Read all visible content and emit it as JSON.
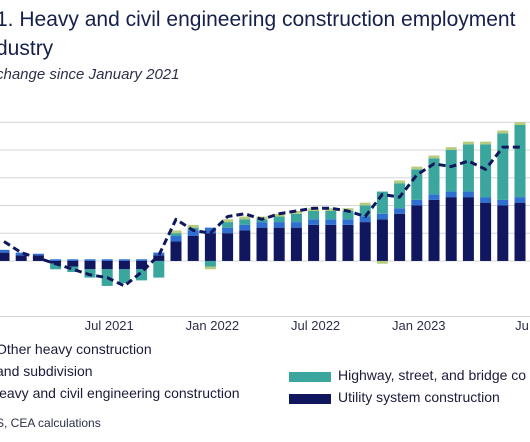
{
  "title_line1": "1. Heavy and civil engineering construction employment",
  "title_line2": "dustry",
  "subtitle": "change since January 2021",
  "source": "S, CEA calculations",
  "colors": {
    "other": "#b5cc7f",
    "land": "#2f6fd1",
    "highway": "#3aa69e",
    "utility": "#10175e",
    "total": "#10175e",
    "grid": "#d5d5d5"
  },
  "legend": {
    "other": "Other heavy construction",
    "land": "and subdivision",
    "total": "leavy and civil engineering construction",
    "highway": "Highway, street, and bridge co",
    "utility": "Utility system construction"
  },
  "chart_data": {
    "type": "bar",
    "stacked": true,
    "x_tick_labels": [
      "Jul 2021",
      "Jan 2022",
      "Jul 2022",
      "Jan 2023",
      "Ju"
    ],
    "categories": [
      "Jan 2021",
      "Feb 2021",
      "Mar 2021",
      "Apr 2021",
      "May 2021",
      "Jun 2021",
      "Jul 2021",
      "Aug 2021",
      "Sep 2021",
      "Oct 2021",
      "Nov 2021",
      "Dec 2021",
      "Jan 2022",
      "Feb 2022",
      "Mar 2022",
      "Apr 2022",
      "May 2022",
      "Jun 2022",
      "Jul 2022",
      "Aug 2022",
      "Sep 2022",
      "Oct 2022",
      "Nov 2022",
      "Dec 2022",
      "Jan 2023",
      "Feb 2023",
      "Mar 2023",
      "Apr 2023",
      "May 2023",
      "Jun 2023",
      "Jul 2023"
    ],
    "series": [
      {
        "name": "Utility system construction",
        "color_key": "utility",
        "values": [
          1.5,
          1.0,
          1.0,
          -0.5,
          -1.0,
          -1.5,
          -1.5,
          -1.5,
          -1.5,
          1.0,
          3.5,
          4.5,
          5.0,
          5.0,
          5.5,
          6.0,
          6.0,
          6.0,
          6.5,
          6.5,
          6.5,
          7.0,
          7.5,
          8.5,
          10.0,
          11.0,
          11.5,
          11.5,
          10.5,
          10.0,
          10.5
        ]
      },
      {
        "name": "Land subdivision",
        "color_key": "land",
        "values": [
          0.5,
          0.5,
          0.3,
          0.3,
          0.3,
          0.3,
          0.3,
          0.3,
          0.3,
          0.5,
          1.0,
          1.0,
          1.0,
          1.0,
          1.0,
          1.0,
          1.0,
          1.0,
          1.0,
          1.0,
          1.0,
          1.0,
          1.0,
          1.0,
          1.0,
          1.0,
          1.0,
          1.0,
          1.0,
          1.0,
          1.0
        ]
      },
      {
        "name": "Highway, street, and bridge construction",
        "color_key": "highway",
        "values": [
          0.0,
          0.0,
          0.0,
          -1.0,
          -1.0,
          -1.5,
          -3.0,
          -2.5,
          -2.0,
          -3.0,
          0.5,
          0.5,
          -1.0,
          1.0,
          1.0,
          0.5,
          1.0,
          1.5,
          1.5,
          1.5,
          1.5,
          2.0,
          4.0,
          4.5,
          5.5,
          6.5,
          7.5,
          8.5,
          9.5,
          12.0,
          13.0
        ]
      },
      {
        "name": "Other heavy construction",
        "color_key": "other",
        "values": [
          0.0,
          0.0,
          0.0,
          0.0,
          0.0,
          0.0,
          0.0,
          0.0,
          0.0,
          0.0,
          0.5,
          0.5,
          -0.5,
          0.5,
          0.5,
          0.5,
          0.5,
          0.5,
          0.5,
          0.5,
          0.5,
          0.5,
          -0.5,
          0.5,
          0.5,
          0.5,
          0.5,
          0.5,
          0.5,
          0.5,
          0.5
        ]
      }
    ],
    "line": {
      "name": "Heavy and civil engineering construction",
      "color_key": "total",
      "values": [
        3.5,
        1.5,
        0.5,
        -0.5,
        -1.5,
        -2.5,
        -3.0,
        -4.5,
        -2.0,
        1.0,
        7.5,
        5.5,
        5.0,
        8.0,
        8.5,
        7.5,
        8.5,
        9.0,
        9.5,
        9.5,
        9.0,
        8.0,
        12.0,
        11.5,
        15.5,
        17.5,
        17.0,
        18.0,
        16.5,
        20.5,
        20.5
      ]
    },
    "ylim": [
      -11,
      29
    ],
    "gridlines": [
      -10,
      0,
      5,
      10,
      15,
      20,
      25
    ],
    "grid": true
  }
}
